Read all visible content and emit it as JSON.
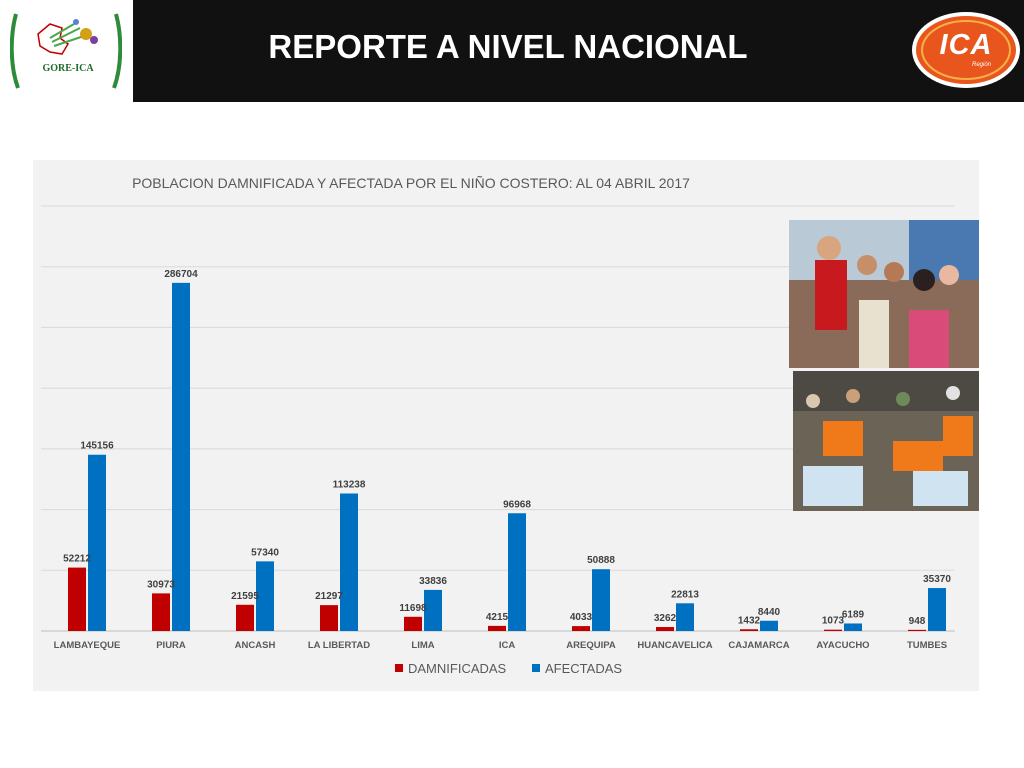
{
  "header": {
    "title": "REPORTE A NIVEL NACIONAL",
    "left_logo_text": "GORE-ICA",
    "right_logo_text": "ICA",
    "right_logo_subtext": "Región",
    "background": "#111111"
  },
  "photos": [
    {
      "subject": "official visiting crowd of residents"
    },
    {
      "subject": "relief workers distributing bottled water"
    }
  ],
  "chart_data": {
    "type": "bar",
    "title": "POBLACION DAMNIFICADA Y AFECTADA POR EL NIÑO COSTERO: AL 04 ABRIL 2017",
    "categories": [
      "LAMBAYEQUE",
      "PIURA",
      "ANCASH",
      "LA LIBERTAD",
      "LIMA",
      "ICA",
      "AREQUIPA",
      "HUANCAVELICA",
      "CAJAMARCA",
      "AYACUCHO",
      "TUMBES"
    ],
    "series": [
      {
        "name": "DAMNIFICADAS",
        "color": "#c00000",
        "values": [
          52212,
          30973,
          21595,
          21297,
          11698,
          4215,
          4033,
          3262,
          1432,
          1073,
          948
        ]
      },
      {
        "name": "AFECTADAS",
        "color": "#0070c0",
        "values": [
          145156,
          286704,
          57340,
          113238,
          33836,
          96968,
          50888,
          22813,
          8440,
          6189,
          35370
        ]
      }
    ],
    "ylim": [
      0,
      350000
    ],
    "grid": true,
    "legend_position": "bottom",
    "data_labels": true
  }
}
